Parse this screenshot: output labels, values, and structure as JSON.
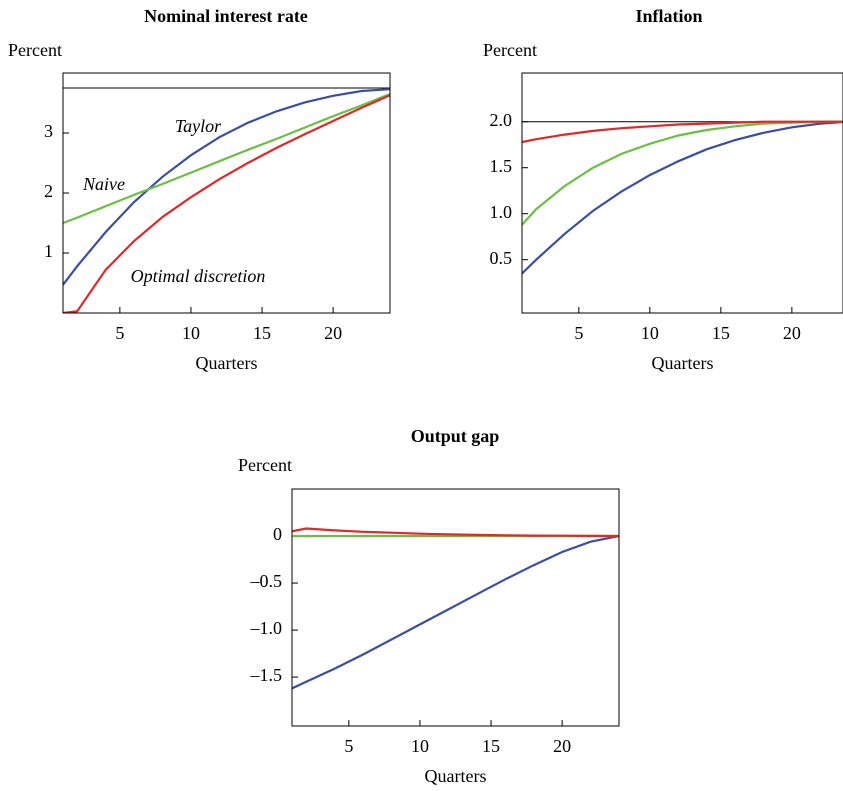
{
  "chart_data": [
    {
      "type": "line",
      "title": "Nominal interest rate",
      "y_label": "Percent",
      "x_label": "Quarters",
      "x": [
        1,
        2,
        4,
        6,
        8,
        10,
        12,
        14,
        16,
        18,
        20,
        22,
        24
      ],
      "xlim": [
        1,
        24
      ],
      "xticks": [
        5,
        10,
        15,
        20
      ],
      "ylim": [
        0,
        4
      ],
      "yticks": [
        1,
        2,
        3
      ],
      "hline": 3.75,
      "series": [
        {
          "color": "#3a4fa0",
          "values": [
            0.47,
            0.78,
            1.35,
            1.85,
            2.27,
            2.63,
            2.93,
            3.17,
            3.36,
            3.51,
            3.62,
            3.7,
            3.73
          ]
        },
        {
          "color": "#6cbf45",
          "values": [
            1.5,
            1.59,
            1.78,
            1.97,
            2.15,
            2.34,
            2.53,
            2.72,
            2.9,
            3.09,
            3.28,
            3.46,
            3.65
          ]
        },
        {
          "color": "#e02828",
          "values": [
            0,
            0.03,
            0.72,
            1.2,
            1.6,
            1.93,
            2.23,
            2.5,
            2.75,
            2.98,
            3.2,
            3.42,
            3.63
          ]
        }
      ],
      "annotations": [
        "Taylor",
        "Naive",
        "Optimal discretion"
      ]
    },
    {
      "type": "line",
      "title": "Inflation",
      "y_label": "Percent",
      "x_label": "Quarters",
      "x": [
        1,
        2,
        4,
        6,
        8,
        10,
        12,
        14,
        16,
        18,
        20,
        22,
        24
      ],
      "xlim": [
        1,
        23.6
      ],
      "xticks": [
        5,
        10,
        15,
        20
      ],
      "ylim": [
        -0.08,
        2.53
      ],
      "yticks": [
        {
          "value": 0.5,
          "label": "0.5"
        },
        {
          "value": 1,
          "label": "1.0"
        },
        {
          "value": 1.5,
          "label": "1.5"
        },
        {
          "value": 2,
          "label": "2.0"
        }
      ],
      "hline": 2,
      "series": [
        {
          "color": "#3a4fa0",
          "values": [
            0.35,
            0.5,
            0.78,
            1.03,
            1.24,
            1.42,
            1.57,
            1.7,
            1.8,
            1.88,
            1.94,
            1.98,
            2
          ]
        },
        {
          "color": "#6cbf45",
          "values": [
            0.88,
            1.05,
            1.3,
            1.5,
            1.65,
            1.76,
            1.85,
            1.91,
            1.95,
            1.98,
            1.99,
            2,
            2
          ]
        },
        {
          "color": "#e02828",
          "values": [
            1.78,
            1.81,
            1.86,
            1.9,
            1.93,
            1.95,
            1.97,
            1.98,
            1.99,
            2,
            2,
            2,
            2
          ]
        }
      ]
    },
    {
      "type": "line",
      "title": "Output gap",
      "y_label": "Percent",
      "x_label": "Quarters",
      "x": [
        1,
        2,
        4,
        6,
        8,
        10,
        12,
        14,
        16,
        18,
        20,
        22,
        24
      ],
      "xlim": [
        1,
        24
      ],
      "xticks": [
        5,
        10,
        15,
        20
      ],
      "ylim": [
        -2.02,
        0.5
      ],
      "yticks": [
        {
          "value": -1.5,
          "label": "–1.5"
        },
        {
          "value": -1,
          "label": "–1.0"
        },
        {
          "value": -0.5,
          "label": "–0.5"
        },
        0
      ],
      "hline": 0,
      "series": [
        {
          "color": "#3a4fa0",
          "values": [
            -1.62,
            -1.55,
            -1.41,
            -1.26,
            -1.1,
            -0.94,
            -0.78,
            -0.62,
            -0.46,
            -0.31,
            -0.17,
            -0.06,
            0
          ]
        },
        {
          "color": "#6cbf45",
          "values": [
            0,
            0,
            0,
            0,
            0,
            0,
            0,
            0,
            0,
            0,
            0,
            0,
            0
          ]
        },
        {
          "color": "#e02828",
          "values": [
            0.05,
            0.08,
            0.06,
            0.045,
            0.035,
            0.025,
            0.018,
            0.012,
            0.008,
            0.005,
            0.003,
            0.001,
            0
          ]
        }
      ]
    }
  ]
}
